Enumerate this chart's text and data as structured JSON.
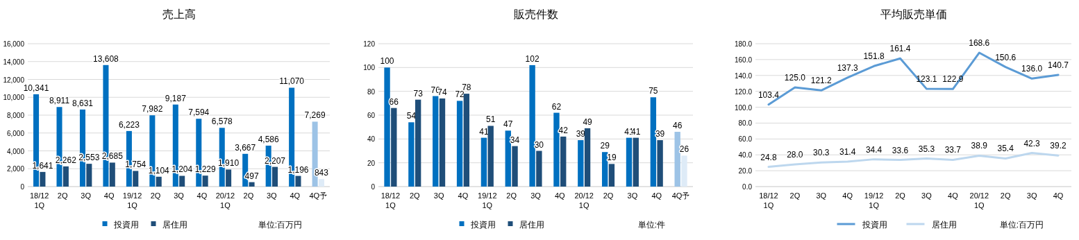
{
  "chart_data": [
    {
      "type": "bar",
      "title": "売上高",
      "categories": [
        "18/12\n1Q",
        "2Q",
        "3Q",
        "4Q",
        "19/12\n1Q",
        "2Q",
        "3Q",
        "4Q",
        "20/12\n1Q",
        "2Q",
        "3Q",
        "4Q",
        "4Q予"
      ],
      "series": [
        {
          "name": "投資用",
          "color": "#0070c0",
          "colors": [
            "#0070c0",
            "#0070c0",
            "#0070c0",
            "#0070c0",
            "#0070c0",
            "#0070c0",
            "#0070c0",
            "#0070c0",
            "#0070c0",
            "#0070c0",
            "#0070c0",
            "#0070c0",
            "#9dc3e6"
          ],
          "values": [
            10341,
            8911,
            8631,
            13608,
            6223,
            7982,
            9187,
            7594,
            6578,
            3667,
            4586,
            11070,
            7269
          ],
          "value_labels": [
            "10,341",
            "8,911",
            "8,631",
            "13,608",
            "6,223",
            "7,982",
            "9,187",
            "7,594",
            "6,578",
            "3,667",
            "4,586",
            "11,070",
            "7,269"
          ]
        },
        {
          "name": "居住用",
          "color": "#1f4e79",
          "colors": [
            "#1f4e79",
            "#1f4e79",
            "#1f4e79",
            "#1f4e79",
            "#1f4e79",
            "#1f4e79",
            "#1f4e79",
            "#1f4e79",
            "#1f4e79",
            "#1f4e79",
            "#1f4e79",
            "#1f4e79",
            "#deebf7"
          ],
          "values": [
            1641,
            2262,
            2553,
            2685,
            1754,
            1104,
            1204,
            1229,
            1910,
            497,
            2207,
            1196,
            843
          ],
          "value_labels": [
            "1,641",
            "2,262",
            "2,553",
            "2,685",
            "1,754",
            "1,104",
            "1,204",
            "1,229",
            "1,910",
            "497",
            "2,207",
            "1,196",
            "843"
          ]
        }
      ],
      "ylim": [
        0,
        16000
      ],
      "yticks": [
        {
          "value": 0,
          "label": "0"
        },
        {
          "value": 2000,
          "label": "2,000"
        },
        {
          "value": 4000,
          "label": "4,000"
        },
        {
          "value": 6000,
          "label": "6,000"
        },
        {
          "value": 8000,
          "label": "8,000"
        },
        {
          "value": 10000,
          "label": "10,000"
        },
        {
          "value": 12000,
          "label": "12,000"
        },
        {
          "value": 14000,
          "label": "14,000"
        },
        {
          "value": 16000,
          "label": "16,000"
        }
      ],
      "grid": "y",
      "legend": "bottom",
      "annotations": [
        "単位:百万円"
      ]
    },
    {
      "type": "bar",
      "title": "販売件数",
      "categories": [
        "18/12\n1Q",
        "2Q",
        "3Q",
        "4Q",
        "19/12\n1Q",
        "2Q",
        "3Q",
        "4Q",
        "20/12\n1Q",
        "2Q",
        "3Q",
        "4Q",
        "4Q予"
      ],
      "series": [
        {
          "name": "投資用",
          "color": "#0070c0",
          "colors": [
            "#0070c0",
            "#0070c0",
            "#0070c0",
            "#0070c0",
            "#0070c0",
            "#0070c0",
            "#0070c0",
            "#0070c0",
            "#0070c0",
            "#0070c0",
            "#0070c0",
            "#0070c0",
            "#9dc3e6"
          ],
          "values": [
            100,
            54,
            76,
            72,
            41,
            47,
            102,
            62,
            39,
            29,
            41,
            75,
            46
          ]
        },
        {
          "name": "居住用",
          "color": "#1f4e79",
          "colors": [
            "#1f4e79",
            "#1f4e79",
            "#1f4e79",
            "#1f4e79",
            "#1f4e79",
            "#1f4e79",
            "#1f4e79",
            "#1f4e79",
            "#1f4e79",
            "#1f4e79",
            "#1f4e79",
            "#1f4e79",
            "#deebf7"
          ],
          "values": [
            66,
            73,
            74,
            78,
            51,
            34,
            30,
            42,
            49,
            19,
            41,
            39,
            26
          ]
        }
      ],
      "ylim": [
        0,
        120
      ],
      "yticks": [
        0,
        20,
        40,
        60,
        80,
        100,
        120
      ],
      "data_labels": true,
      "grid": "y",
      "legend": "bottom",
      "annotations": [
        "単位:件"
      ]
    },
    {
      "type": "line",
      "title": "平均販売単価",
      "categories": [
        "18/12\n1Q",
        "2Q",
        "3Q",
        "4Q",
        "19/12\n1Q",
        "2Q",
        "3Q",
        "4Q",
        "20/12\n1Q",
        "2Q",
        "3Q",
        "4Q"
      ],
      "series": [
        {
          "name": "投資用",
          "color": "#5b9bd5",
          "values": [
            103.4,
            125.0,
            121.2,
            137.3,
            151.8,
            161.4,
            123.1,
            122.9,
            168.6,
            150.6,
            136.0,
            140.7
          ],
          "value_labels": [
            "103.4",
            "125.0",
            "121.2",
            "137.3",
            "151.8",
            "161.4",
            "123.1",
            "122.9",
            "168.6",
            "150.6",
            "136.0",
            "140.7"
          ]
        },
        {
          "name": "居住用",
          "color": "#bdd7ee",
          "values": [
            24.8,
            28.0,
            30.3,
            31.4,
            34.4,
            33.6,
            35.3,
            33.7,
            38.9,
            35.4,
            42.3,
            39.2
          ],
          "value_labels": [
            "24.8",
            "28.0",
            "30.3",
            "31.4",
            "34.4",
            "33.6",
            "35.3",
            "33.7",
            "38.9",
            "35.4",
            "42.3",
            "39.2"
          ]
        }
      ],
      "ylim": [
        0,
        180
      ],
      "yticks": [
        {
          "value": 0,
          "label": "0.0"
        },
        {
          "value": 20,
          "label": "20.0"
        },
        {
          "value": 40,
          "label": "40.0"
        },
        {
          "value": 60,
          "label": "60.0"
        },
        {
          "value": 80,
          "label": "80.0"
        },
        {
          "value": 100,
          "label": "100.0"
        },
        {
          "value": 120,
          "label": "120.0"
        },
        {
          "value": 140,
          "label": "140.0"
        },
        {
          "value": 160,
          "label": "160.0"
        },
        {
          "value": 180,
          "label": "180.0"
        }
      ],
      "grid": "y",
      "legend": "bottom",
      "marker": "none",
      "annotations": [
        "単位:百万円"
      ]
    }
  ]
}
